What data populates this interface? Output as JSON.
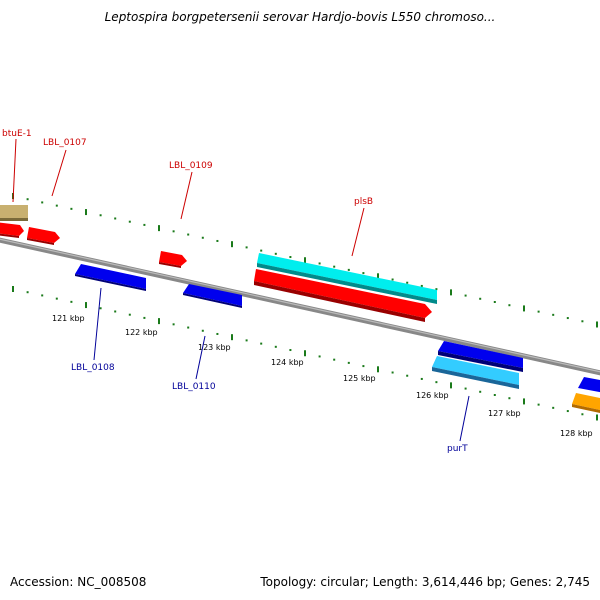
{
  "header": {
    "title": "Leptospira borgpetersenii serovar Hardjo-bovis L550 chromoso..."
  },
  "footer": {
    "accession": "Accession: NC_008508",
    "summary": "Topology: circular; Length: 3,614,446 bp; Genes: 2,745"
  },
  "map": {
    "scale_labels": [
      "121 kbp",
      "122 kbp",
      "123 kbp",
      "124 kbp",
      "125 kbp",
      "126 kbp",
      "127 kbp",
      "128 kbp"
    ],
    "forward_gene_labels": [
      "btuE-1",
      "LBL_0107",
      "LBL_0109",
      "plsB"
    ],
    "reverse_gene_labels": [
      "LBL_0108",
      "LBL_0110",
      "purT"
    ],
    "colors": {
      "forward_label": "#cc0000",
      "reverse_label": "#000099",
      "backbone": "#888888",
      "tick": "#1a7a1a",
      "cds_forward": "#ff0000",
      "cds_reverse": "#0000ee",
      "rna_forward": "#00eeee",
      "rna_reverse": "#33ccff",
      "other_gene": "#ffa500",
      "olive_feature": "#c8b070"
    }
  }
}
